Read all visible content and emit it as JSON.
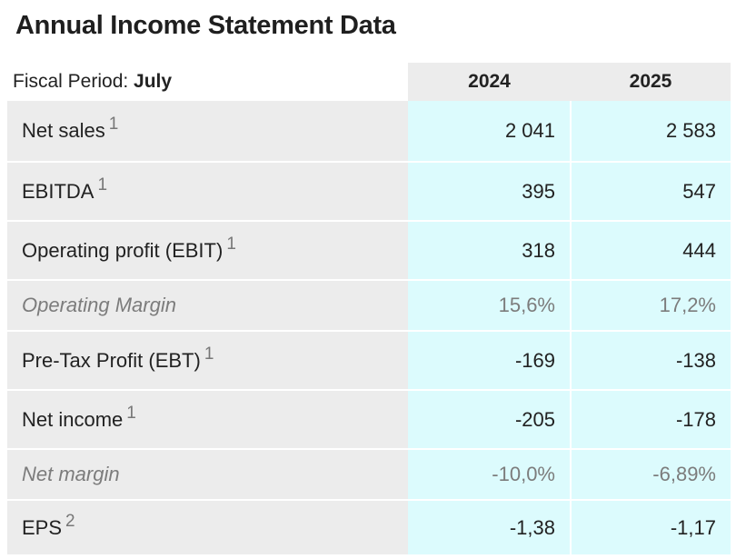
{
  "title": "Annual Income Statement Data",
  "header": {
    "period_label": "Fiscal Period: ",
    "period_value": "July",
    "years": [
      "2024",
      "2025"
    ]
  },
  "rows": [
    {
      "label": "Net sales",
      "note": "1",
      "values": [
        "2 041",
        "2 583"
      ]
    },
    {
      "label": "EBITDA",
      "note": "1",
      "values": [
        "395",
        "547"
      ]
    },
    {
      "label": "Operating profit (EBIT)",
      "note": "1",
      "values": [
        "318",
        "444"
      ]
    },
    {
      "label": "Operating Margin",
      "note": "",
      "values": [
        "15,6%",
        "17,2%"
      ]
    },
    {
      "label": "Pre-Tax Profit (EBT)",
      "note": "1",
      "values": [
        "-169",
        "-138"
      ]
    },
    {
      "label": "Net income",
      "note": "1",
      "values": [
        "-205",
        "-178"
      ]
    },
    {
      "label": "Net margin",
      "note": "",
      "values": [
        "-10,0%",
        "-6,89%"
      ]
    },
    {
      "label": "EPS",
      "note": "2",
      "values": [
        "-1,38",
        "-1,17"
      ]
    }
  ]
}
